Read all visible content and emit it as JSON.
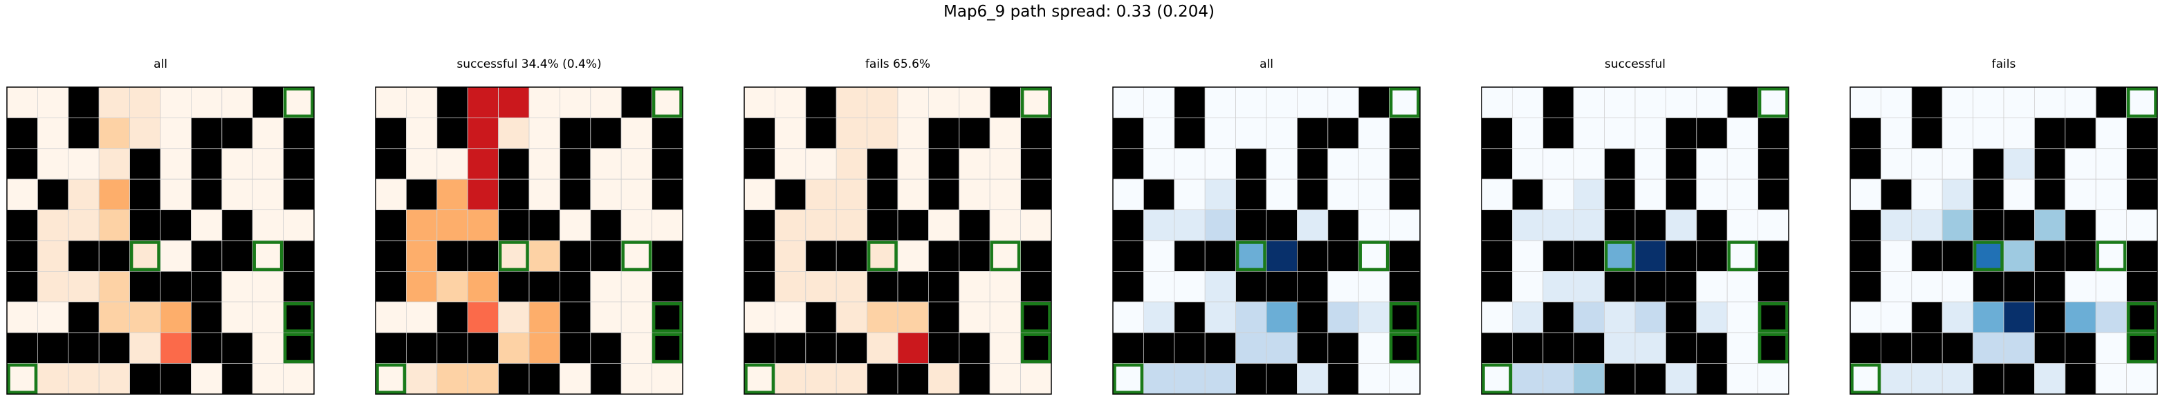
{
  "suptitle": "Map6_9 path spread: 0.33 (0.204)",
  "palettes": {
    "reds": [
      "#fff5eb",
      "#fde8d4",
      "#fdd2a5",
      "#fdae6b",
      "#fb6a4a",
      "#cb181d",
      "#67000d"
    ],
    "blues": [
      "#f7fbff",
      "#deebf7",
      "#c6dbef",
      "#9ecae1",
      "#6baed6",
      "#2171b5",
      "#08306b"
    ],
    "wall": "#000000",
    "goal_outline": "#1a7a1a",
    "grid_line": "#d0d0d0"
  },
  "map": {
    "rows": 10,
    "cols": 10,
    "walls": [
      "0010000010",
      "1010001101",
      "1000101001",
      "0100101001",
      "1000110100",
      "1011001101",
      "1000111001",
      "0010001001",
      "1111001101",
      "0000110100"
    ],
    "goals": [
      [
        0,
        9
      ],
      [
        5,
        4
      ],
      [
        5,
        8
      ],
      [
        7,
        9
      ],
      [
        8,
        9
      ],
      [
        9,
        0
      ]
    ]
  },
  "chart_data": [
    {
      "type": "heatmap",
      "title": "all",
      "colormap": "reds",
      "values": [
        [
          0,
          0,
          0,
          1,
          1,
          0,
          0,
          0,
          0,
          0
        ],
        [
          0,
          0,
          0,
          2,
          1,
          0,
          0,
          0,
          0,
          0
        ],
        [
          0,
          0,
          0,
          1,
          1,
          0,
          0,
          0,
          0,
          0
        ],
        [
          0,
          0,
          1,
          3,
          0,
          0,
          0,
          0,
          0,
          0
        ],
        [
          0,
          1,
          1,
          2,
          0,
          0,
          0,
          0,
          0,
          0
        ],
        [
          0,
          1,
          1,
          1,
          1,
          0,
          0,
          0,
          0,
          0
        ],
        [
          0,
          1,
          1,
          2,
          2,
          2,
          0,
          0,
          0,
          0
        ],
        [
          0,
          0,
          0,
          2,
          2,
          3,
          0,
          0,
          0,
          0
        ],
        [
          0,
          0,
          0,
          1,
          1,
          4,
          0,
          0,
          0,
          0
        ],
        [
          0,
          1,
          1,
          1,
          1,
          6,
          0,
          0,
          0,
          0
        ]
      ]
    },
    {
      "type": "heatmap",
      "title": "successful 34.4% (0.4%)",
      "colormap": "reds",
      "values": [
        [
          0,
          0,
          0,
          5,
          5,
          0,
          0,
          0,
          0,
          0
        ],
        [
          0,
          0,
          0,
          5,
          1,
          0,
          0,
          0,
          0,
          0
        ],
        [
          0,
          0,
          0,
          5,
          1,
          0,
          0,
          0,
          0,
          0
        ],
        [
          0,
          1,
          3,
          5,
          0,
          0,
          0,
          0,
          0,
          0
        ],
        [
          0,
          3,
          3,
          3,
          1,
          0,
          0,
          0,
          0,
          0
        ],
        [
          0,
          3,
          2,
          3,
          1,
          2,
          0,
          0,
          0,
          0
        ],
        [
          0,
          3,
          2,
          3,
          3,
          3,
          0,
          0,
          0,
          0
        ],
        [
          0,
          0,
          1,
          4,
          1,
          3,
          0,
          0,
          0,
          0
        ],
        [
          0,
          1,
          2,
          3,
          2,
          3,
          0,
          0,
          0,
          0
        ],
        [
          0,
          1,
          2,
          2,
          3,
          6,
          0,
          0,
          0,
          0
        ]
      ]
    },
    {
      "type": "heatmap",
      "title": "fails 65.6%",
      "colormap": "reds",
      "values": [
        [
          0,
          0,
          0,
          1,
          1,
          0,
          0,
          0,
          0,
          0
        ],
        [
          0,
          0,
          0,
          1,
          1,
          0,
          0,
          0,
          0,
          0
        ],
        [
          0,
          0,
          0,
          1,
          1,
          0,
          0,
          0,
          0,
          0
        ],
        [
          0,
          0,
          1,
          1,
          0,
          0,
          0,
          0,
          0,
          0
        ],
        [
          0,
          1,
          1,
          1,
          0,
          0,
          0,
          0,
          0,
          0
        ],
        [
          0,
          1,
          1,
          1,
          1,
          0,
          0,
          0,
          0,
          0
        ],
        [
          0,
          1,
          1,
          1,
          1,
          1,
          0,
          0,
          0,
          0
        ],
        [
          0,
          0,
          0,
          1,
          2,
          2,
          0,
          0,
          0,
          0
        ],
        [
          0,
          0,
          0,
          1,
          1,
          5,
          2,
          0,
          0,
          0
        ],
        [
          0,
          1,
          1,
          1,
          1,
          6,
          1,
          0,
          0,
          0
        ]
      ]
    },
    {
      "type": "heatmap",
      "title": "all",
      "colormap": "blues",
      "values": [
        [
          0,
          0,
          0,
          0,
          0,
          0,
          0,
          0,
          0,
          0
        ],
        [
          0,
          0,
          0,
          0,
          0,
          0,
          0,
          0,
          0,
          0
        ],
        [
          0,
          0,
          0,
          0,
          0,
          0,
          1,
          0,
          0,
          0
        ],
        [
          0,
          0,
          0,
          1,
          0,
          0,
          1,
          0,
          0,
          0
        ],
        [
          0,
          1,
          1,
          2,
          2,
          1,
          1,
          1,
          0,
          0
        ],
        [
          0,
          0,
          0,
          0,
          4,
          6,
          2,
          1,
          0,
          0
        ],
        [
          0,
          0,
          0,
          1,
          1,
          5,
          2,
          0,
          0,
          0
        ],
        [
          0,
          1,
          1,
          1,
          2,
          4,
          2,
          2,
          1,
          0
        ],
        [
          0,
          0,
          0,
          1,
          2,
          2,
          1,
          0,
          0,
          1
        ],
        [
          0,
          2,
          2,
          2,
          1,
          1,
          1,
          0,
          0,
          0
        ]
      ]
    },
    {
      "type": "heatmap",
      "title": "successful",
      "colormap": "blues",
      "values": [
        [
          0,
          0,
          0,
          0,
          0,
          0,
          0,
          0,
          0,
          0
        ],
        [
          0,
          0,
          0,
          0,
          0,
          0,
          0,
          0,
          0,
          0
        ],
        [
          0,
          0,
          0,
          0,
          0,
          0,
          0,
          0,
          0,
          0
        ],
        [
          0,
          0,
          0,
          1,
          0,
          0,
          0,
          0,
          0,
          0
        ],
        [
          0,
          1,
          1,
          1,
          1,
          1,
          1,
          0,
          0,
          0
        ],
        [
          0,
          0,
          0,
          0,
          4,
          6,
          2,
          0,
          0,
          0
        ],
        [
          0,
          0,
          1,
          1,
          1,
          1,
          1,
          0,
          0,
          0
        ],
        [
          0,
          1,
          1,
          2,
          1,
          2,
          1,
          1,
          0,
          0
        ],
        [
          0,
          0,
          1,
          2,
          1,
          1,
          1,
          0,
          0,
          0
        ],
        [
          0,
          2,
          2,
          3,
          2,
          2,
          1,
          0,
          0,
          0
        ]
      ]
    },
    {
      "type": "heatmap",
      "title": "fails",
      "colormap": "blues",
      "values": [
        [
          0,
          0,
          0,
          0,
          0,
          0,
          0,
          0,
          0,
          0
        ],
        [
          0,
          0,
          0,
          0,
          0,
          0,
          0,
          0,
          0,
          0
        ],
        [
          0,
          0,
          0,
          0,
          0,
          1,
          1,
          0,
          0,
          0
        ],
        [
          0,
          0,
          0,
          1,
          0,
          0,
          1,
          0,
          0,
          0
        ],
        [
          0,
          1,
          1,
          3,
          2,
          1,
          3,
          2,
          0,
          0
        ],
        [
          0,
          0,
          0,
          0,
          5,
          3,
          2,
          1,
          0,
          0
        ],
        [
          0,
          0,
          0,
          0,
          1,
          6,
          2,
          0,
          0,
          0
        ],
        [
          0,
          0,
          0,
          1,
          4,
          6,
          4,
          4,
          2,
          1
        ],
        [
          0,
          0,
          0,
          1,
          2,
          2,
          1,
          0,
          0,
          2
        ],
        [
          0,
          1,
          1,
          1,
          1,
          1,
          1,
          1,
          0,
          0
        ]
      ]
    }
  ]
}
